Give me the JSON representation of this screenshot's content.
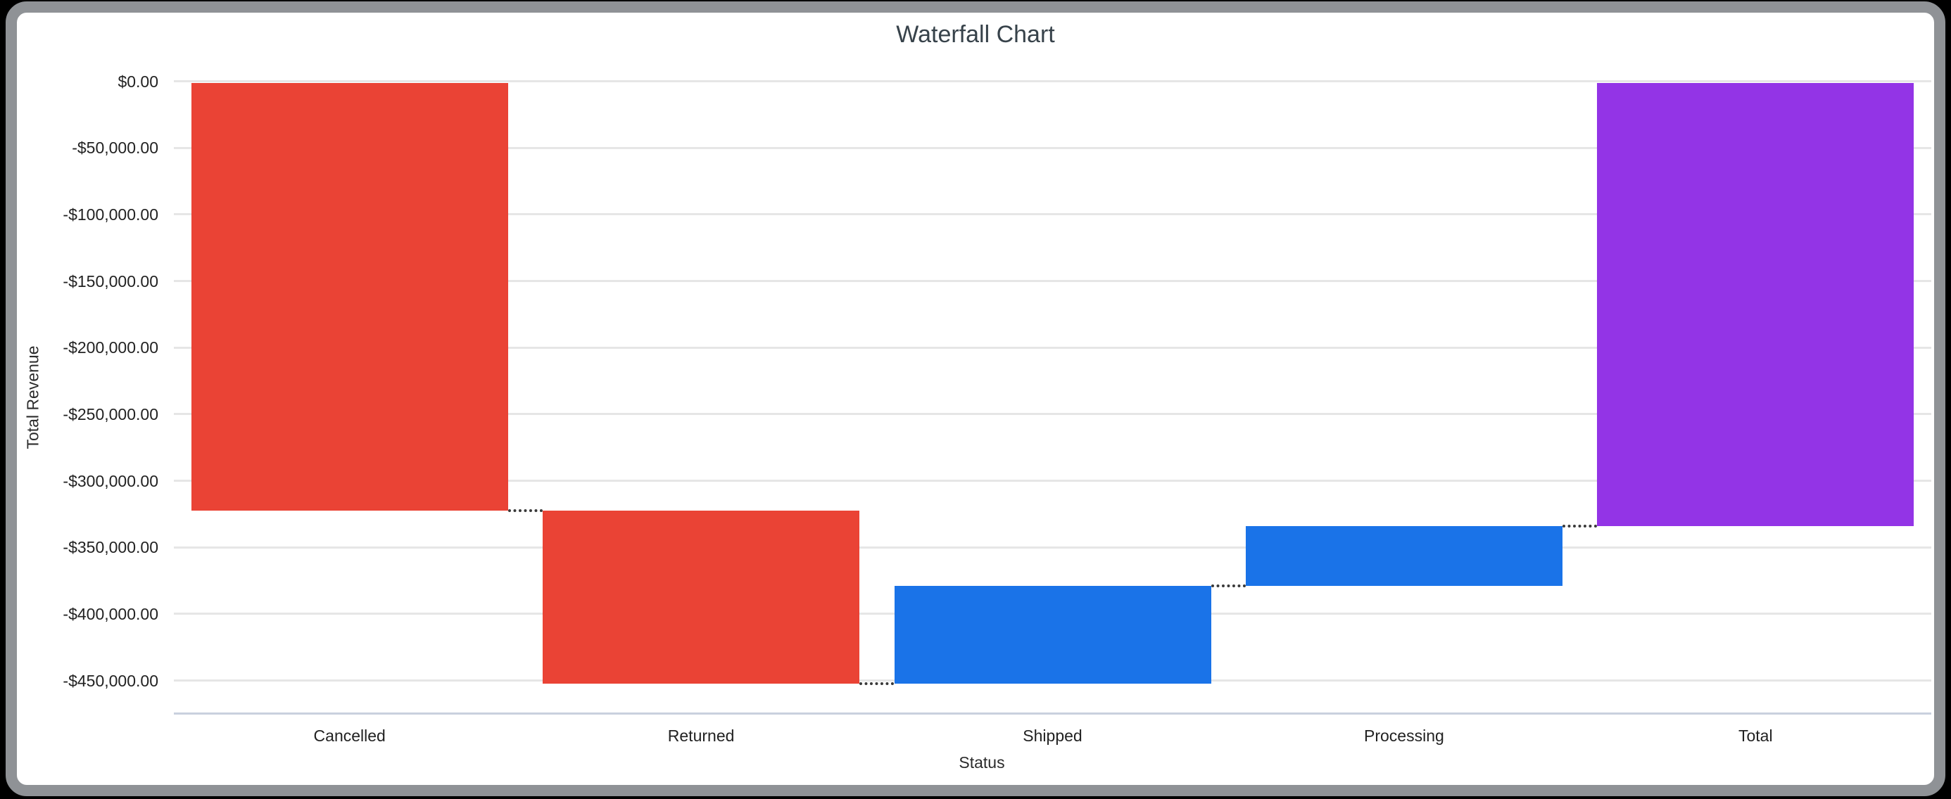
{
  "window": {
    "background_color": "#000000"
  },
  "card": {
    "background_color": "#ffffff",
    "border_color": "#8f9296"
  },
  "chart": {
    "title": "Waterfall Chart",
    "y_axis": {
      "title": "Total Revenue",
      "ticks": [
        {
          "label": "$0.00",
          "value": 0
        },
        {
          "label": "-$50,000.00",
          "value": -50000
        },
        {
          "label": "-$100,000.00",
          "value": -100000
        },
        {
          "label": "-$150,000.00",
          "value": -150000
        },
        {
          "label": "-$200,000.00",
          "value": -200000
        },
        {
          "label": "-$250,000.00",
          "value": -250000
        },
        {
          "label": "-$300,000.00",
          "value": -300000
        },
        {
          "label": "-$350,000.00",
          "value": -350000
        },
        {
          "label": "-$400,000.00",
          "value": -400000
        },
        {
          "label": "-$450,000.00",
          "value": -450000
        }
      ]
    },
    "x_axis": {
      "title": "Status",
      "categories": [
        "Cancelled",
        "Returned",
        "Shipped",
        "Processing",
        "Total"
      ]
    },
    "palette": {
      "decrease_color": "#ea4335",
      "increase_color": "#1a73e8",
      "total_color": "#9334e6",
      "gridline_color": "#e6e6e6",
      "baseline_color": "#c9d1de",
      "connector_color": "#3a3a3a"
    }
  },
  "chart_data": {
    "type": "bar",
    "subtype": "waterfall",
    "title": "Waterfall Chart",
    "xlabel": "Status",
    "ylabel": "Total Revenue",
    "categories": [
      "Cancelled",
      "Returned",
      "Shipped",
      "Processing",
      "Total"
    ],
    "bars": [
      {
        "label": "Cancelled",
        "start": 0,
        "end": -322500,
        "delta": -322500,
        "direction": "decrease",
        "color": "#ea4335"
      },
      {
        "label": "Returned",
        "start": -322500,
        "end": -452500,
        "delta": -130000,
        "direction": "decrease",
        "color": "#ea4335"
      },
      {
        "label": "Shipped",
        "start": -452500,
        "end": -379000,
        "delta": 73500,
        "direction": "increase",
        "color": "#1a73e8"
      },
      {
        "label": "Processing",
        "start": -379000,
        "end": -334000,
        "delta": 45000,
        "direction": "increase",
        "color": "#1a73e8"
      },
      {
        "label": "Total",
        "start": 0,
        "end": -334000,
        "delta": -334000,
        "direction": "total",
        "color": "#9334e6"
      }
    ],
    "ylim": [
      -475000,
      0
    ],
    "y_tick_step": 50000,
    "grid": true,
    "legend_position": "none",
    "connector_style": "dotted"
  }
}
